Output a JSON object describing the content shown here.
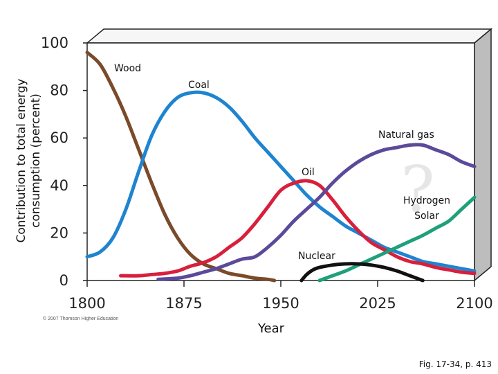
{
  "chart_data": {
    "type": "line",
    "xlabel": "Year",
    "ylabel": [
      "Contribution to total energy",
      "consumption (percent)"
    ],
    "xlim": [
      1800,
      2100
    ],
    "ylim": [
      0,
      100
    ],
    "x_ticks": [
      "1800",
      "1875",
      "1950",
      "2025",
      "2100"
    ],
    "y_ticks": [
      "0",
      "20",
      "40",
      "60",
      "80",
      "100"
    ],
    "series": [
      {
        "name": "Wood",
        "color": "#7a4a2a",
        "x": [
          1800,
          1810,
          1820,
          1830,
          1840,
          1850,
          1860,
          1870,
          1880,
          1890,
          1900,
          1910,
          1920,
          1930,
          1940,
          1945
        ],
        "y": [
          96,
          91,
          81,
          69,
          55,
          41,
          28,
          18,
          11,
          7,
          5,
          3,
          2,
          1,
          0.5,
          0
        ]
      },
      {
        "name": "Coal",
        "color": "#1f84d0",
        "x": [
          1800,
          1810,
          1820,
          1830,
          1840,
          1850,
          1860,
          1870,
          1880,
          1890,
          1900,
          1910,
          1920,
          1930,
          1940,
          1950,
          1960,
          1970,
          1980,
          1990,
          2000,
          2010,
          2020,
          2030,
          2040,
          2050,
          2060,
          2070,
          2080,
          2090,
          2100
        ],
        "y": [
          10,
          12,
          18,
          30,
          46,
          61,
          71,
          77,
          79,
          79,
          77,
          73,
          67,
          60,
          54,
          48,
          42,
          36,
          31,
          27,
          23,
          20,
          17,
          14,
          12,
          10,
          8,
          7,
          6,
          5,
          4
        ]
      },
      {
        "name": "Oil",
        "color": "#d81f3c",
        "x": [
          1826,
          1840,
          1850,
          1860,
          1870,
          1880,
          1890,
          1900,
          1910,
          1920,
          1930,
          1940,
          1950,
          1960,
          1970,
          1980,
          1990,
          2000,
          2010,
          2020,
          2030,
          2040,
          2050,
          2060,
          2070,
          2080,
          2090,
          2100
        ],
        "y": [
          2,
          2,
          2.5,
          3,
          4,
          6,
          7.5,
          10,
          14,
          18,
          24,
          31,
          38,
          41,
          42,
          40,
          34,
          27,
          21,
          16,
          13,
          10,
          8,
          7,
          5.5,
          4.5,
          3.5,
          3
        ]
      },
      {
        "name": "Natural gas",
        "color": "#5b4a9a",
        "x": [
          1855,
          1870,
          1880,
          1890,
          1900,
          1910,
          1920,
          1930,
          1940,
          1950,
          1960,
          1970,
          1980,
          1990,
          2000,
          2010,
          2020,
          2030,
          2040,
          2050,
          2060,
          2070,
          2080,
          2090,
          2100
        ],
        "y": [
          0.5,
          1,
          2,
          3.5,
          5,
          7,
          9,
          10,
          14,
          19,
          25,
          30,
          35,
          41,
          46,
          50,
          53,
          55,
          56,
          57,
          57,
          55,
          53,
          50,
          48
        ]
      },
      {
        "name": "Hydrogen Solar",
        "color": "#1fa07a",
        "x": [
          1980,
          1990,
          2000,
          2010,
          2020,
          2030,
          2040,
          2050,
          2060,
          2070,
          2080,
          2090,
          2100
        ],
        "y": [
          0,
          2,
          4,
          6.5,
          9,
          11.5,
          14,
          16.5,
          19,
          22,
          25,
          30,
          35
        ]
      },
      {
        "name": "Nuclear",
        "color": "#111111",
        "x": [
          1966,
          1970,
          1975,
          1980,
          1990,
          2000,
          2010,
          2020,
          2030,
          2040,
          2050,
          2060
        ],
        "y": [
          0,
          2.5,
          4.5,
          5.5,
          6.5,
          7,
          7,
          6.5,
          5.5,
          4,
          2,
          0
        ]
      }
    ],
    "annotations": {
      "wood": "Wood",
      "coal": "Coal",
      "natural_gas": "Natural gas",
      "oil": "Oil",
      "hydrogen": "Hydrogen",
      "solar": "Solar",
      "nuclear": "Nuclear",
      "question_mark": "?"
    }
  },
  "copyright": "© 2007 Thomson Higher Education",
  "caption": "Fig. 17-34, p. 413"
}
